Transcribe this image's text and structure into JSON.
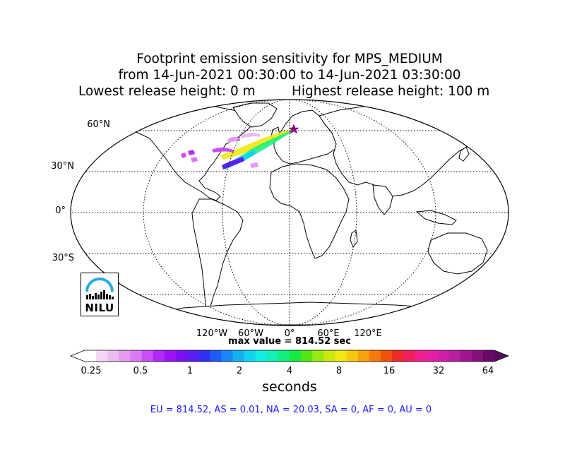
{
  "title": {
    "line1": "Footprint emission sensitivity for MPS_MEDIUM",
    "line2": "from 14-Jun-2021 00:30:00 to 14-Jun-2021 03:30:00",
    "lowest": "Lowest release height: 0 m",
    "highest": "Highest release height: 100 m"
  },
  "map": {
    "projection": "robinson",
    "lat_labels": [
      "60°N",
      "30°N",
      "0°",
      "30°S"
    ],
    "lon_labels": [
      "120°W",
      "60°W",
      "0°",
      "60°E",
      "120°E"
    ],
    "gridline_style": "dotted",
    "release_marker": {
      "shape": "star",
      "color": "#8b008b",
      "region": "Norway"
    },
    "plume_region": "North Atlantic / North America"
  },
  "logo": {
    "text": "NILU",
    "color": "#29a8e0"
  },
  "max_value": "max value = 814.52 sec",
  "colorbar": {
    "scale": "log",
    "ticks": [
      "0.25",
      "0.5",
      "1",
      "2",
      "4",
      "8",
      "16",
      "32",
      "64"
    ],
    "unit": "seconds",
    "colors": [
      "#ffffff",
      "#f5d6f5",
      "#ecbcf0",
      "#e39aef",
      "#d97af2",
      "#c84ff5",
      "#b02af7",
      "#9a12f5",
      "#7a10f0",
      "#5a1ef2",
      "#3030f5",
      "#1f5af5",
      "#1a86f5",
      "#14b0f0",
      "#12d4ee",
      "#12eee4",
      "#12f0b8",
      "#12ee80",
      "#16ea40",
      "#54e614",
      "#98e812",
      "#cae810",
      "#f0e810",
      "#f8c810",
      "#f8a20e",
      "#f47a0c",
      "#f0520c",
      "#ef2a2a",
      "#f0205a",
      "#f01e8a",
      "#e61ea6",
      "#d01eaa",
      "#b81ea0",
      "#a0168f",
      "#86107a",
      "#6a0a68"
    ]
  },
  "regions": "EU = 814.52,  AS = 0.01,  NA = 20.03,  SA = 0,  AF = 0,  AU = 0"
}
